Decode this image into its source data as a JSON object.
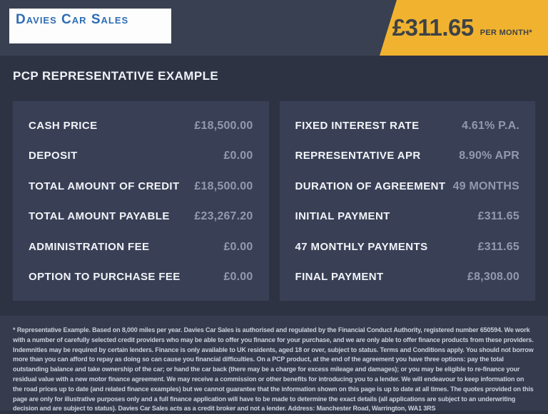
{
  "header": {
    "logo_text": "Davies Car Sales",
    "price_banner": {
      "amount": "£311.65",
      "suffix": "PER MONTH*"
    }
  },
  "page": {
    "title": "PCP REPRESENTATIVE EXAMPLE"
  },
  "finance_example": {
    "left_rows": [
      {
        "label": "CASH PRICE",
        "value": "£18,500.00"
      },
      {
        "label": "DEPOSIT",
        "value": "£0.00"
      },
      {
        "label": "TOTAL AMOUNT OF CREDIT",
        "value": "£18,500.00"
      },
      {
        "label": "TOTAL AMOUNT PAYABLE",
        "value": "£23,267.20"
      },
      {
        "label": "ADMINISTRATION FEE",
        "value": "£0.00"
      },
      {
        "label": "OPTION TO PURCHASE FEE",
        "value": "£0.00"
      }
    ],
    "right_rows": [
      {
        "label": "FIXED INTEREST RATE",
        "value": "4.61% P.A."
      },
      {
        "label": "REPRESENTATIVE APR",
        "value": "8.90% APR"
      },
      {
        "label": "DURATION OF AGREEMENT",
        "value": "49 MONTHS"
      },
      {
        "label": "INITIAL PAYMENT",
        "value": "£311.65"
      },
      {
        "label": "47 MONTHLY PAYMENTS",
        "value": "£311.65"
      },
      {
        "label": "FINAL PAYMENT",
        "value": "£8,308.00"
      }
    ]
  },
  "footer": {
    "disclaimer": "* Representative Example. Based on 8,000 miles per year. Davies Car Sales  is authorised and regulated by the Financial Conduct Authority, registered number 650594. We work with a number of carefully selected credit providers who may be able to offer you finance for your purchase, and we are only able to offer finance products from these providers. Indemnities may be required by certain lenders. Finance is only available to UK residents, aged 18 or over, subject to status. Terms and Conditions apply. You should not borrow more than you can afford to repay as doing so can cause you financial difficulties. On a PCP product, at the end of the agreement you have three options: pay the total outstanding balance and take ownership of the car; or hand the car back (there may be a charge for excess mileage and damages); or you may be eligible to re-finance your residual value with a new motor finance agreement. We may receive a commission or other benefits for introducing you to a lender. We will endeavour to keep information on the road prices up to date (and related finance examples) but we cannot guarantee that the information shown on this page is up to date at all times. The quotes provided on this page are only for illustrative purposes only and a full finance application will have to be made to determine the exact details (all applications are subject to an underwriting decision and are subject to status). Davies Car Sales  acts as a credit broker and not a lender. Address: Manchester Road, Warrington, WA1 3RS"
  },
  "colors": {
    "header_bg": "#394051",
    "main_bg": "#2E3344",
    "panel_bg": "#394056",
    "footer_bg": "#363C4D",
    "accent_yellow": "#F1B32F",
    "logo_blue": "#2E6CB4",
    "label_text": "#F2F4F8",
    "value_text": "#9199AF",
    "banner_text": "#3E4247"
  }
}
